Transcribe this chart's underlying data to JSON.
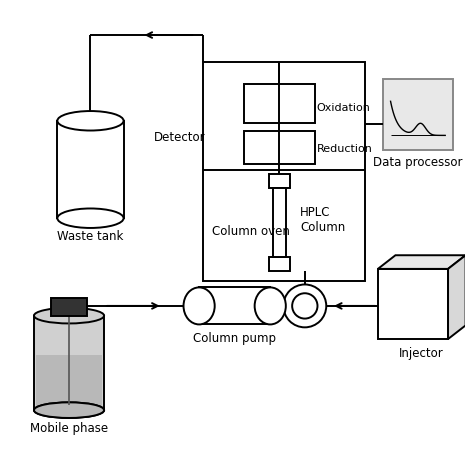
{
  "bg_color": "#ffffff",
  "line_color": "#000000",
  "labels": {
    "waste_tank": "Waste tank",
    "column_oven": "Column oven",
    "detector": "Detector",
    "oxidation": "Oxidation",
    "reduction": "Reduction",
    "hplc_column": "HPLC\nColumn",
    "data_processor": "Data processor",
    "column_pump": "Column pump",
    "injector": "Injector",
    "mobile_phase": "Mobile phase"
  },
  "fig_width": 4.74,
  "fig_height": 4.53,
  "dpi": 100
}
